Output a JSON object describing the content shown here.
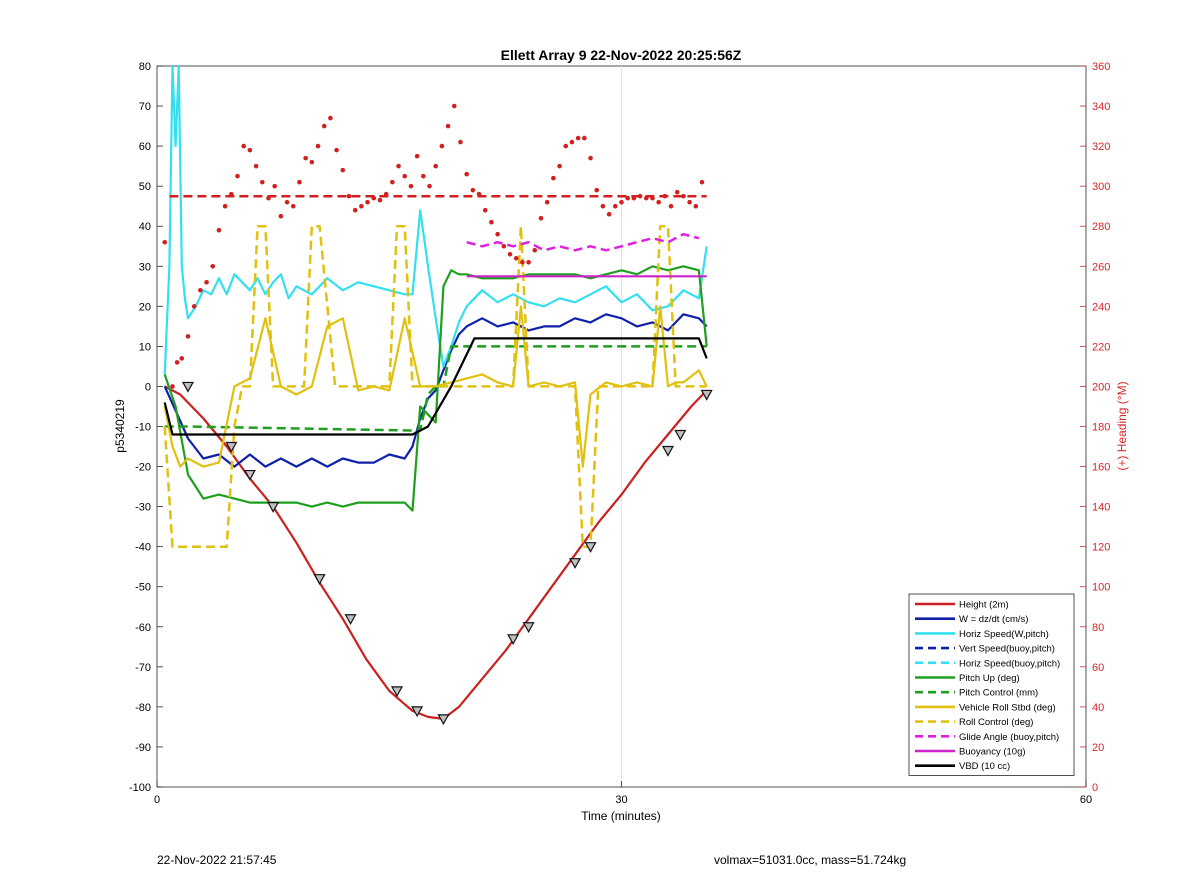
{
  "chart_data": {
    "type": "line",
    "title": "Ellett Array 9 22-Nov-2022 20:25:56Z",
    "xlabel": "Time (minutes)",
    "ylabel": "p5340219",
    "y2label": "(+) Heading (°M)",
    "xlim": [
      0,
      60
    ],
    "ylim": [
      -100,
      80
    ],
    "y2lim": [
      0,
      360
    ],
    "x_ticks": [
      0,
      30,
      60
    ],
    "y_ticks": [
      -100,
      -90,
      -80,
      -70,
      -60,
      -50,
      -40,
      -30,
      -20,
      -10,
      0,
      10,
      20,
      30,
      40,
      50,
      60,
      70,
      80
    ],
    "y2_ticks": [
      0,
      20,
      40,
      60,
      80,
      100,
      120,
      140,
      160,
      180,
      200,
      220,
      240,
      260,
      280,
      300,
      320,
      340,
      360
    ],
    "grid": "x only",
    "legend_position": "bottom-right",
    "colors": {
      "axis_right": "#d62728",
      "text": "#000000"
    },
    "series": [
      {
        "name": "Height (2m)",
        "color": "#cc1f1f",
        "style": "solid",
        "axis": "left",
        "x": [
          0.5,
          1.5,
          3,
          4.5,
          6,
          7.5,
          9,
          10.5,
          12,
          13.5,
          15,
          16.5,
          17.5,
          18.5,
          19.5,
          21,
          22.5,
          24,
          25.5,
          27,
          28.5,
          30,
          31.5,
          33,
          34.5,
          35.5
        ],
        "y": [
          0,
          -2,
          -8,
          -15,
          -23,
          -30,
          -39,
          -49,
          -58,
          -68,
          -76,
          -81,
          -82.5,
          -83,
          -80,
          -73,
          -66,
          -58,
          -50,
          -42,
          -34,
          -27,
          -19,
          -12,
          -5,
          -1
        ]
      },
      {
        "name": "W = dz/dt (cm/s)",
        "color": "#1020a8",
        "style": "solid",
        "axis": "left",
        "x": [
          0.5,
          1.2,
          2,
          3,
          4,
          5,
          6,
          7,
          8,
          9,
          10,
          11,
          12,
          13,
          14,
          15,
          16,
          16.5,
          17,
          17.5,
          18,
          18.5,
          19,
          19.5,
          20,
          21,
          22,
          23,
          24,
          25,
          26,
          27,
          28,
          29,
          30,
          31,
          32,
          33,
          34,
          35,
          35.5
        ],
        "y": [
          0,
          -6,
          -13,
          -18,
          -17,
          -20,
          -17,
          -20,
          -18,
          -20,
          -18,
          -20,
          -18,
          -19,
          -19,
          -17,
          -18,
          -15,
          -8,
          -3,
          -1,
          4,
          9,
          13,
          15,
          17,
          15,
          16,
          14,
          15,
          15,
          17,
          16,
          18,
          17,
          15,
          16,
          14,
          18,
          17,
          15
        ]
      },
      {
        "name": "Horiz Speed(W,pitch)",
        "color": "#33e0ef",
        "style": "solid",
        "axis": "left",
        "x": [
          0.5,
          0.8,
          1,
          1.2,
          1.4,
          1.6,
          1.8,
          2,
          2.5,
          3,
          3.5,
          4,
          4.5,
          5,
          5.5,
          6,
          6.5,
          7,
          7.5,
          8,
          8.5,
          9,
          10,
          11,
          12,
          13,
          14,
          15,
          16,
          16.5,
          17,
          17.5,
          18,
          18.5,
          19,
          19.5,
          20,
          21,
          22,
          23,
          24,
          25,
          26,
          27,
          28,
          29,
          30,
          31,
          32,
          33,
          34,
          35,
          35.5
        ],
        "y": [
          3,
          30,
          80,
          60,
          80,
          30,
          22,
          17,
          20,
          24,
          23,
          27,
          23,
          28,
          26,
          24,
          27,
          23,
          26,
          28,
          22,
          25,
          23,
          27,
          24,
          26,
          25,
          24,
          23,
          23,
          44,
          30,
          17,
          5,
          10,
          16,
          20,
          24,
          21,
          23,
          21,
          20,
          22,
          21,
          23,
          25,
          21,
          23,
          19,
          20,
          24,
          22,
          35
        ]
      },
      {
        "name": "Vert Speed(buoy,pitch)",
        "color": "#1020a8",
        "style": "dashed",
        "axis": "left",
        "x": [],
        "y": []
      },
      {
        "name": "Horiz Speed(buoy,pitch)",
        "color": "#33e0ef",
        "style": "dashed",
        "axis": "left",
        "x": [],
        "y": []
      },
      {
        "name": "Pitch Up (deg)",
        "color": "#1ea01e",
        "style": "solid",
        "axis": "left",
        "x": [
          0.5,
          1.2,
          2,
          3,
          4,
          5,
          6,
          7,
          8,
          9,
          10,
          11,
          12,
          13,
          14,
          15,
          16,
          16.5,
          17,
          17.5,
          18,
          18.5,
          19,
          19.5,
          20,
          21,
          22,
          23,
          24,
          25,
          26,
          27,
          28,
          29,
          30,
          31,
          32,
          33,
          34,
          35,
          35.5
        ],
        "y": [
          3,
          -5,
          -22,
          -28,
          -27,
          -28,
          -29,
          -29,
          -29,
          -29,
          -30,
          -29,
          -30,
          -29,
          -29,
          -29,
          -29,
          -31,
          -5,
          -7,
          -9,
          25,
          29,
          28,
          28,
          27,
          27,
          27,
          28,
          28,
          28,
          28,
          27,
          28,
          29,
          28,
          30,
          29,
          30,
          29,
          10
        ]
      },
      {
        "name": "Pitch Control (mm)",
        "color": "#1ea01e",
        "style": "dashed",
        "axis": "left",
        "x": [
          0.5,
          1.5,
          2,
          16.5,
          17,
          17.5,
          18,
          18.5,
          19,
          35,
          35.5
        ],
        "y": [
          -10,
          -10,
          -10,
          -11,
          -11,
          -2,
          0,
          0,
          10,
          10,
          10
        ]
      },
      {
        "name": "Vehicle Roll Stbd (deg)",
        "color": "#e0c010",
        "style": "solid",
        "axis": "left",
        "x": [
          0.5,
          1,
          1.5,
          2,
          3,
          4,
          5,
          6,
          7,
          8,
          9,
          10,
          11,
          12,
          13,
          14,
          15,
          16,
          17,
          18,
          19,
          20,
          21,
          22,
          23,
          23.5,
          24,
          25,
          26,
          27,
          27.5,
          28,
          29,
          30,
          31,
          32,
          32.5,
          33,
          33.5,
          34,
          35,
          35.5
        ],
        "y": [
          -5,
          -15,
          -20,
          -18,
          -20,
          -19,
          0,
          2,
          17,
          0,
          -2,
          0,
          15,
          17,
          -1,
          0,
          -1,
          17,
          0,
          0,
          1,
          2,
          3,
          1,
          0,
          20,
          0,
          1,
          0,
          1,
          -20,
          -2,
          1,
          0,
          1,
          0,
          20,
          0,
          1,
          1,
          4,
          0
        ]
      },
      {
        "name": "Roll Control (deg)",
        "color": "#e0c010",
        "style": "dashed",
        "axis": "left",
        "x": [
          0.5,
          1,
          1.5,
          3,
          4.5,
          5,
          5.5,
          6,
          6.5,
          7,
          7.5,
          8,
          8.5,
          9.5,
          10,
          10.5,
          11.5,
          12,
          12.5,
          13,
          14,
          15,
          15.5,
          16,
          16.5,
          17,
          17.5,
          18,
          19,
          20,
          21,
          22,
          23,
          23.5,
          24,
          25,
          26,
          27,
          27.5,
          28,
          28.5,
          29,
          30,
          31,
          32,
          32.5,
          33,
          33.5,
          34,
          35,
          35.5
        ],
        "y": [
          -10,
          -40,
          -40,
          -40,
          -40,
          -10,
          0,
          0,
          40,
          40,
          0,
          0,
          0,
          0,
          40,
          40,
          0,
          0,
          0,
          0,
          0,
          0,
          40,
          40,
          0,
          0,
          0,
          0,
          0,
          0,
          0,
          0,
          0,
          40,
          0,
          0,
          0,
          0,
          -40,
          -40,
          0,
          0,
          0,
          0,
          0,
          40,
          40,
          0,
          0,
          0,
          0
        ]
      },
      {
        "name": "Glide Angle (buoy,pitch)",
        "color": "#e020e0",
        "style": "dashed",
        "axis": "left",
        "x": [
          20,
          21,
          22,
          23,
          24,
          25,
          26,
          27,
          28,
          29,
          30,
          31,
          32,
          33,
          34,
          35
        ],
        "y": [
          36,
          35,
          36,
          35,
          36,
          34,
          35,
          34,
          35,
          34,
          35,
          36,
          37,
          36,
          38,
          37
        ]
      },
      {
        "name": "Buoyancy (10g)",
        "color": "#cc22cc",
        "style": "solid",
        "axis": "left",
        "x": [
          20,
          35.5
        ],
        "y": [
          27.5,
          27.5
        ]
      },
      {
        "name": "VBD (10 cc)",
        "color": "#000000",
        "style": "solid",
        "axis": "left",
        "x": [
          0.5,
          1,
          2,
          16.5,
          17.5,
          19,
          20.5,
          35,
          35.5
        ],
        "y": [
          -4,
          -12,
          -12,
          -12,
          -10,
          0,
          12,
          12,
          7
        ]
      },
      {
        "name": "Heading",
        "color": "#d02020",
        "style": "dots",
        "axis": "right",
        "x": [
          0.5,
          1,
          1.3,
          1.6,
          2,
          2.4,
          2.8,
          3.2,
          3.6,
          4,
          4.4,
          4.8,
          5.2,
          5.6,
          6,
          6.4,
          6.8,
          7.2,
          7.6,
          8,
          8.4,
          8.8,
          9.2,
          9.6,
          10,
          10.4,
          10.8,
          11.2,
          11.6,
          12,
          12.4,
          12.8,
          13.2,
          13.6,
          14,
          14.4,
          14.8,
          15.2,
          15.6,
          16,
          16.4,
          16.8,
          17.2,
          17.6,
          18,
          18.4,
          18.8,
          19.2,
          19.6,
          20,
          20.4,
          20.8,
          21.2,
          21.6,
          22,
          22.4,
          22.8,
          23.2,
          23.6,
          24,
          24.4,
          24.8,
          25.2,
          25.6,
          26,
          26.4,
          26.8,
          27.2,
          27.6,
          28,
          28.4,
          28.8,
          29.2,
          29.6,
          30,
          30.4,
          30.8,
          31.2,
          31.6,
          32,
          32.4,
          32.8,
          33.2,
          33.6,
          34,
          34.4,
          34.8,
          35.2
        ],
        "y": [
          272,
          200,
          212,
          214,
          225,
          240,
          248,
          252,
          260,
          278,
          290,
          296,
          305,
          320,
          318,
          310,
          302,
          294,
          300,
          285,
          292,
          290,
          302,
          314,
          312,
          320,
          330,
          334,
          318,
          308,
          295,
          288,
          290,
          292,
          294,
          293,
          296,
          302,
          310,
          305,
          300,
          315,
          305,
          300,
          310,
          320,
          330,
          340,
          322,
          306,
          298,
          296,
          288,
          282,
          276,
          270,
          266,
          264,
          262,
          262,
          268,
          284,
          292,
          304,
          310,
          320,
          322,
          324,
          324,
          314,
          298,
          290,
          286,
          290,
          292,
          294,
          294,
          295,
          294,
          294,
          292,
          295,
          290,
          297,
          295,
          292,
          290,
          302
        ]
      },
      {
        "name": "Heading target",
        "color": "#d02020",
        "style": "dashed",
        "axis": "right",
        "x": [
          0.8,
          35.5
        ],
        "y": [
          295,
          295
        ]
      },
      {
        "name": "Height markers",
        "color": "#111111",
        "style": "triangles",
        "axis": "left",
        "x": [
          2,
          4.8,
          6,
          7.5,
          10.5,
          12.5,
          15.5,
          16.8,
          18.5,
          23,
          24,
          27,
          28,
          33,
          33.8,
          35.5
        ],
        "y": [
          0,
          -15,
          -22,
          -30,
          -48,
          -58,
          -76,
          -81,
          -83,
          -63,
          -60,
          -44,
          -40,
          -16,
          -12,
          -2
        ]
      }
    ]
  },
  "footer": {
    "left": "22-Nov-2022 21:57:45",
    "right": "volmax=51031.0cc, mass=51.724kg"
  }
}
